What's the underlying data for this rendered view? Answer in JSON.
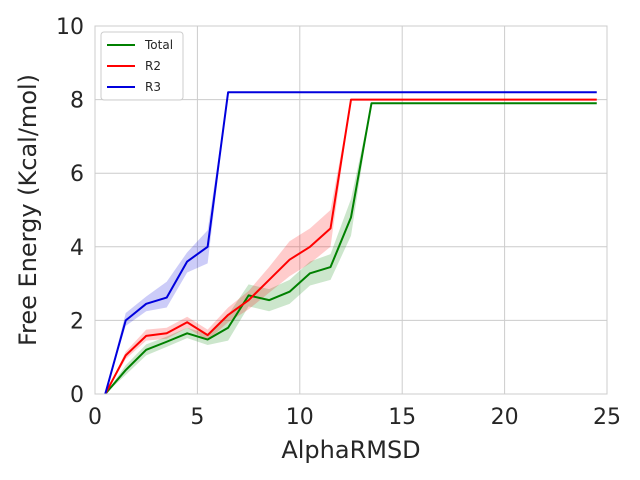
{
  "chart_data": {
    "type": "line",
    "title": "",
    "xlabel": "AlphaRMSD",
    "ylabel": "Free Energy (Kcal/mol)",
    "xlim": [
      0,
      25
    ],
    "ylim": [
      0,
      10
    ],
    "xticks": [
      0,
      5,
      10,
      15,
      20,
      25
    ],
    "yticks": [
      0,
      2,
      4,
      6,
      8,
      10
    ],
    "xtick_labels": [
      "0",
      "5",
      "10",
      "15",
      "20",
      "25"
    ],
    "ytick_labels": [
      "0",
      "2",
      "4",
      "6",
      "8",
      "10"
    ],
    "grid": true,
    "legend": "top-left",
    "series": [
      {
        "name": "Total",
        "color": "#008000",
        "x": [
          0.5,
          1.5,
          2.5,
          3.5,
          4.5,
          5.5,
          6.5,
          7.5,
          8.5,
          9.5,
          10.5,
          11.5,
          12.5,
          13.5,
          24.5
        ],
        "y": [
          0,
          0.65,
          1.2,
          1.42,
          1.65,
          1.48,
          1.8,
          2.68,
          2.55,
          2.78,
          3.28,
          3.45,
          4.8,
          7.9,
          7.9
        ],
        "lower": [
          0,
          0.52,
          1.05,
          1.28,
          1.52,
          1.33,
          1.45,
          2.38,
          2.25,
          2.45,
          2.95,
          3.1,
          4.3,
          7.9,
          7.9
        ],
        "upper": [
          0,
          0.78,
          1.35,
          1.56,
          1.8,
          1.63,
          2.15,
          2.98,
          2.85,
          3.1,
          3.6,
          3.8,
          5.3,
          7.9,
          7.9
        ]
      },
      {
        "name": "R2",
        "color": "#ff0000",
        "x": [
          0.5,
          1.5,
          2.5,
          3.5,
          4.5,
          5.5,
          6.5,
          7.5,
          8.5,
          9.5,
          10.5,
          11.5,
          12.5,
          24.5
        ],
        "y": [
          0,
          1.05,
          1.58,
          1.65,
          1.95,
          1.6,
          2.15,
          2.55,
          3.1,
          3.65,
          4.0,
          4.5,
          8.0,
          8.0
        ],
        "lower": [
          0,
          0.95,
          1.45,
          1.5,
          1.8,
          1.45,
          1.95,
          2.3,
          2.75,
          3.2,
          3.55,
          4.0,
          8.0,
          8.0
        ],
        "upper": [
          0,
          1.15,
          1.75,
          1.8,
          2.1,
          1.75,
          2.35,
          2.8,
          3.45,
          4.15,
          4.5,
          5.0,
          8.0,
          8.0
        ]
      },
      {
        "name": "R3",
        "color": "#0000dd",
        "x": [
          0.5,
          1.5,
          2.5,
          3.5,
          4.5,
          5.5,
          6.5,
          24.5
        ],
        "y": [
          0,
          2.0,
          2.45,
          2.62,
          3.6,
          4.0,
          8.2,
          8.2
        ],
        "lower": [
          0,
          1.85,
          2.25,
          2.35,
          3.3,
          3.55,
          8.2,
          8.2
        ],
        "upper": [
          0,
          2.2,
          2.65,
          3.05,
          3.85,
          4.45,
          8.2,
          8.2
        ]
      }
    ]
  }
}
